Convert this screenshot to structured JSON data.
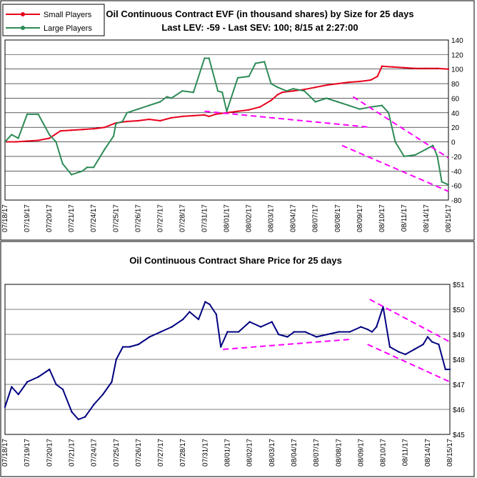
{
  "colors": {
    "small": "#e8001c",
    "large": "#2e8b57",
    "price": "#000080",
    "trend": "#ff00ff",
    "grid": "#000000",
    "frame": "#000000",
    "background": "#ffffff"
  },
  "chart_data": [
    {
      "type": "line",
      "title": "Oil Continuous Contract EVF (in thousand shares) by Size for 25 days",
      "subtitle": "Last LEV: -59 - Last SEV: 100; 8/15 at 2:27:00",
      "xlabel": "",
      "ylabel": "",
      "ylim": [
        -80,
        140
      ],
      "yticks": [
        -80,
        -60,
        -40,
        -20,
        0,
        20,
        40,
        60,
        80,
        100,
        120,
        140
      ],
      "grid": true,
      "legend_position": "top-left",
      "categories": [
        "07/18/17",
        "07/19/17",
        "07/20/17",
        "07/21/17",
        "07/24/17",
        "07/25/17",
        "07/26/17",
        "07/27/17",
        "07/28/17",
        "07/31/17",
        "08/01/17",
        "08/02/17",
        "08/03/17",
        "08/04/17",
        "08/07/17",
        "08/08/17",
        "08/09/17",
        "08/10/17",
        "08/11/17",
        "08/14/17",
        "08/15/17"
      ],
      "series": [
        {
          "name": "Small Players",
          "color": "#e8001c",
          "x": [
            0,
            0.5,
            1.0,
            1.5,
            2.0,
            2.5,
            3.0,
            3.5,
            4.0,
            4.5,
            5.0,
            5.5,
            6.0,
            6.5,
            7.0,
            7.5,
            8.0,
            8.5,
            9.0,
            9.2,
            9.5,
            10.0,
            10.5,
            11.0,
            11.5,
            12.0,
            12.3,
            12.5,
            13.0,
            13.5,
            14.0,
            14.5,
            15.0,
            15.5,
            16.0,
            16.5,
            16.8,
            17.0,
            17.5,
            18.0,
            18.5,
            19.0,
            19.5,
            20.0
          ],
          "values": [
            0,
            0,
            1,
            2,
            5,
            15,
            16,
            17,
            18,
            20,
            26,
            28,
            29,
            31,
            29,
            33,
            35,
            36,
            37,
            35,
            38,
            40,
            42,
            44,
            48,
            57,
            65,
            68,
            70,
            72,
            75,
            78,
            80,
            82,
            83,
            85,
            90,
            104,
            103,
            102,
            101,
            101,
            101,
            100
          ]
        },
        {
          "name": "Large Players",
          "color": "#2e8b57",
          "x": [
            0,
            0.3,
            0.6,
            1.0,
            1.5,
            2.0,
            2.3,
            2.6,
            3.0,
            3.5,
            3.7,
            4.0,
            4.5,
            4.9,
            5.0,
            5.3,
            5.5,
            6.0,
            6.5,
            7.0,
            7.3,
            7.5,
            8.0,
            8.5,
            9.0,
            9.2,
            9.6,
            9.8,
            10.0,
            10.5,
            11.0,
            11.3,
            11.7,
            12.0,
            12.3,
            12.7,
            13.0,
            13.5,
            14.0,
            14.5,
            15.0,
            15.5,
            16.0,
            16.5,
            17.0,
            17.3,
            17.6,
            18.0,
            18.5,
            19.0,
            19.3,
            19.5,
            19.7,
            20.0
          ],
          "values": [
            0,
            10,
            5,
            38,
            38,
            10,
            0,
            -30,
            -45,
            -40,
            -35,
            -35,
            -10,
            8,
            25,
            28,
            40,
            45,
            50,
            55,
            62,
            60,
            70,
            68,
            115,
            115,
            70,
            68,
            42,
            88,
            90,
            108,
            110,
            80,
            75,
            70,
            73,
            70,
            55,
            60,
            55,
            50,
            45,
            48,
            50,
            40,
            0,
            -20,
            -18,
            -10,
            -5,
            -20,
            -55,
            -59
          ]
        }
      ],
      "trendlines": [
        {
          "x": [
            9.0,
            16.5
          ],
          "y": [
            42,
            20
          ]
        },
        {
          "x": [
            15.7,
            20.0
          ],
          "y": [
            62,
            -22
          ]
        },
        {
          "x": [
            15.2,
            20.0
          ],
          "y": [
            -5,
            -68
          ]
        }
      ]
    },
    {
      "type": "line",
      "title": "Oil Continuous Contract Share Price for 25 days",
      "xlabel": "",
      "ylabel": "",
      "ylim": [
        45,
        51
      ],
      "yticks": [
        45,
        46,
        47,
        48,
        49,
        50,
        51
      ],
      "ytick_labels": [
        "$45",
        "$46",
        "$47",
        "$48",
        "$49",
        "$50",
        "$51"
      ],
      "grid": true,
      "categories": [
        "07/18/17",
        "07/19/17",
        "07/20/17",
        "07/21/17",
        "07/24/17",
        "07/25/17",
        "07/26/17",
        "07/27/17",
        "07/28/17",
        "07/31/17",
        "08/01/17",
        "08/02/17",
        "08/03/17",
        "08/04/17",
        "08/07/17",
        "08/08/17",
        "08/09/17",
        "08/10/17",
        "08/11/17",
        "08/14/17",
        "08/15/17"
      ],
      "series": [
        {
          "color": "#000080",
          "x": [
            0,
            0.3,
            0.6,
            1.0,
            1.5,
            2.0,
            2.3,
            2.6,
            3.0,
            3.3,
            3.6,
            4.0,
            4.4,
            4.8,
            5.0,
            5.3,
            5.6,
            6.0,
            6.5,
            7.0,
            7.5,
            8.0,
            8.3,
            8.7,
            9.0,
            9.2,
            9.5,
            9.7,
            10.0,
            10.5,
            11.0,
            11.5,
            12.0,
            12.3,
            12.7,
            13.0,
            13.5,
            14.0,
            14.5,
            15.0,
            15.5,
            16.0,
            16.3,
            16.5,
            16.7,
            17.0,
            17.3,
            17.7,
            18.0,
            18.4,
            18.8,
            19.0,
            19.2,
            19.5,
            19.8,
            20.0
          ],
          "values": [
            46.1,
            46.9,
            46.6,
            47.1,
            47.3,
            47.6,
            47.0,
            46.8,
            45.9,
            45.6,
            45.7,
            46.2,
            46.6,
            47.1,
            48.0,
            48.5,
            48.5,
            48.6,
            48.9,
            49.1,
            49.3,
            49.6,
            49.9,
            49.6,
            50.3,
            50.2,
            49.8,
            48.5,
            49.1,
            49.1,
            49.5,
            49.3,
            49.5,
            49.0,
            48.9,
            49.1,
            49.1,
            48.9,
            49.0,
            49.1,
            49.1,
            49.3,
            49.2,
            49.1,
            49.3,
            50.1,
            48.5,
            48.3,
            48.2,
            48.4,
            48.6,
            48.9,
            48.7,
            48.6,
            47.6,
            47.6
          ]
        }
      ],
      "trendlines": [
        {
          "x": [
            9.8,
            15.5
          ],
          "y": [
            48.4,
            48.8
          ]
        },
        {
          "x": [
            16.3,
            20.0
          ],
          "y": [
            48.6,
            47.1
          ]
        },
        {
          "x": [
            16.4,
            20.0
          ],
          "y": [
            50.4,
            48.7
          ]
        }
      ]
    }
  ]
}
